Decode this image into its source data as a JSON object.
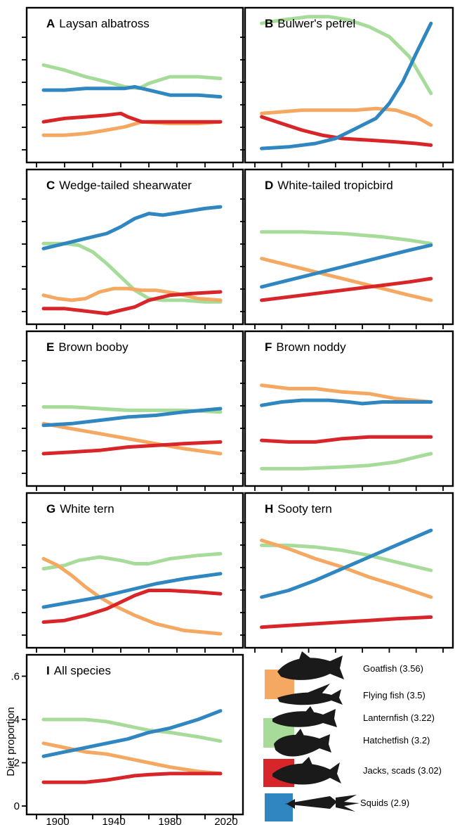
{
  "colors": {
    "goatfish_flying_fish": "#F5A862",
    "lanternfish_hatchetfish": "#A7DB9A",
    "jacks_scads": "#D8252A",
    "squids": "#2F86C0"
  },
  "x_axis": {
    "ticks": [
      "1900",
      "1940",
      "1980",
      "2020"
    ]
  },
  "y_axis": {
    "label": "Diet proportion",
    "ticks": [
      ".6",
      ".4",
      ".2",
      "0"
    ]
  },
  "legend": [
    {
      "label": "Goatfish (3.56)",
      "group": "goatfish_flying_fish",
      "icon": "goatfish-icon"
    },
    {
      "label": "Flying fish (3.5)",
      "group": "goatfish_flying_fish",
      "icon": "flying-fish-icon"
    },
    {
      "label": "Lanternfish (3.22)",
      "group": "lanternfish_hatchetfish",
      "icon": "lanternfish-icon"
    },
    {
      "label": "Hatchetfish (3.2)",
      "group": "lanternfish_hatchetfish",
      "icon": "hatchetfish-icon"
    },
    {
      "label": "Jacks, scads (3.02)",
      "group": "jacks_scads",
      "icon": "jack-icon"
    },
    {
      "label": "Squids (2.9)",
      "group": "squids",
      "icon": "squid-icon"
    }
  ],
  "chart_data": [
    {
      "panel": "A",
      "title": "Laysan albatross",
      "type": "line",
      "series": [
        {
          "color_key": "lanternfish_hatchetfish",
          "x": [
            1890,
            1905,
            1920,
            1935,
            1948,
            1958,
            1965,
            1980,
            2000,
            2016
          ],
          "y": [
            0.55,
            0.52,
            0.48,
            0.45,
            0.42,
            0.41,
            0.44,
            0.48,
            0.48,
            0.47
          ]
        },
        {
          "color_key": "squids",
          "x": [
            1890,
            1905,
            1920,
            1935,
            1948,
            1955,
            1965,
            1980,
            2000,
            2016
          ],
          "y": [
            0.4,
            0.4,
            0.41,
            0.41,
            0.41,
            0.42,
            0.4,
            0.37,
            0.37,
            0.36
          ]
        },
        {
          "color_key": "jacks_scads",
          "x": [
            1890,
            1905,
            1920,
            1935,
            1945,
            1950,
            1960,
            1980,
            2000,
            2016
          ],
          "y": [
            0.21,
            0.23,
            0.24,
            0.25,
            0.26,
            0.24,
            0.21,
            0.21,
            0.21,
            0.21
          ]
        },
        {
          "color_key": "goatfish_flying_fish",
          "x": [
            1890,
            1905,
            1920,
            1935,
            1948,
            1960,
            1980,
            2000,
            2016
          ],
          "y": [
            0.13,
            0.13,
            0.14,
            0.16,
            0.18,
            0.21,
            0.2,
            0.2,
            0.21
          ]
        }
      ]
    },
    {
      "panel": "B",
      "title": "Bulwer's petrel",
      "type": "line",
      "series": [
        {
          "color_key": "lanternfish_hatchetfish",
          "x": [
            1890,
            1905,
            1925,
            1940,
            1955,
            1970,
            1985,
            2000,
            2016
          ],
          "y": [
            0.8,
            0.82,
            0.84,
            0.84,
            0.82,
            0.78,
            0.72,
            0.6,
            0.38
          ]
        },
        {
          "color_key": "goatfish_flying_fish",
          "x": [
            1890,
            1905,
            1920,
            1940,
            1960,
            1975,
            1990,
            2005,
            2016
          ],
          "y": [
            0.26,
            0.27,
            0.28,
            0.28,
            0.28,
            0.29,
            0.28,
            0.24,
            0.19
          ]
        },
        {
          "color_key": "jacks_scads",
          "x": [
            1890,
            1905,
            1920,
            1935,
            1950,
            1970,
            1990,
            2005,
            2016
          ],
          "y": [
            0.24,
            0.2,
            0.16,
            0.13,
            0.11,
            0.1,
            0.09,
            0.08,
            0.07
          ]
        },
        {
          "color_key": "squids",
          "x": [
            1890,
            1910,
            1930,
            1945,
            1960,
            1975,
            1985,
            1995,
            2005,
            2016
          ],
          "y": [
            0.05,
            0.06,
            0.08,
            0.11,
            0.17,
            0.23,
            0.32,
            0.45,
            0.62,
            0.8
          ]
        }
      ]
    },
    {
      "panel": "C",
      "title": "Wedge-tailed shearwater",
      "type": "line",
      "series": [
        {
          "color_key": "squids",
          "x": [
            1890,
            1905,
            1920,
            1935,
            1945,
            1955,
            1965,
            1975,
            1990,
            2005,
            2016
          ],
          "y": [
            0.42,
            0.45,
            0.48,
            0.51,
            0.55,
            0.6,
            0.63,
            0.62,
            0.64,
            0.66,
            0.67
          ]
        },
        {
          "color_key": "lanternfish_hatchetfish",
          "x": [
            1890,
            1905,
            1915,
            1925,
            1935,
            1945,
            1955,
            1965,
            1975,
            1990,
            2005,
            2016
          ],
          "y": [
            0.45,
            0.45,
            0.44,
            0.4,
            0.33,
            0.25,
            0.17,
            0.12,
            0.11,
            0.11,
            0.1,
            0.1
          ]
        },
        {
          "color_key": "goatfish_flying_fish",
          "x": [
            1890,
            1900,
            1910,
            1920,
            1930,
            1940,
            1950,
            1960,
            1970,
            1985,
            2000,
            2016
          ],
          "y": [
            0.14,
            0.12,
            0.11,
            0.12,
            0.16,
            0.18,
            0.18,
            0.17,
            0.17,
            0.15,
            0.12,
            0.11
          ]
        },
        {
          "color_key": "jacks_scads",
          "x": [
            1890,
            1905,
            1915,
            1925,
            1935,
            1945,
            1955,
            1965,
            1980,
            1995,
            2016
          ],
          "y": [
            0.06,
            0.06,
            0.05,
            0.04,
            0.03,
            0.05,
            0.07,
            0.11,
            0.14,
            0.15,
            0.16
          ]
        }
      ]
    },
    {
      "panel": "D",
      "title": "White-tailed tropicbird",
      "type": "line",
      "series": [
        {
          "color_key": "lanternfish_hatchetfish",
          "x": [
            1890,
            1920,
            1950,
            1980,
            2000,
            2016
          ],
          "y": [
            0.52,
            0.52,
            0.51,
            0.49,
            0.47,
            0.45
          ]
        },
        {
          "color_key": "goatfish_flying_fish",
          "x": [
            1890,
            1920,
            1950,
            1980,
            2000,
            2016
          ],
          "y": [
            0.36,
            0.3,
            0.24,
            0.18,
            0.14,
            0.11
          ]
        },
        {
          "color_key": "squids",
          "x": [
            1890,
            1920,
            1950,
            1980,
            2000,
            2016
          ],
          "y": [
            0.19,
            0.25,
            0.31,
            0.37,
            0.41,
            0.44
          ]
        },
        {
          "color_key": "jacks_scads",
          "x": [
            1890,
            1920,
            1950,
            1980,
            2000,
            2016
          ],
          "y": [
            0.11,
            0.14,
            0.17,
            0.2,
            0.22,
            0.24
          ]
        }
      ]
    },
    {
      "panel": "E",
      "title": "Brown booby",
      "type": "line",
      "series": [
        {
          "color_key": "lanternfish_hatchetfish",
          "x": [
            1890,
            1910,
            1930,
            1950,
            1970,
            1990,
            2016
          ],
          "y": [
            0.44,
            0.44,
            0.43,
            0.42,
            0.42,
            0.42,
            0.41
          ]
        },
        {
          "color_key": "squids",
          "x": [
            1890,
            1910,
            1930,
            1950,
            1970,
            1990,
            2016
          ],
          "y": [
            0.33,
            0.34,
            0.36,
            0.38,
            0.39,
            0.41,
            0.43
          ]
        },
        {
          "color_key": "goatfish_flying_fish",
          "x": [
            1890,
            1910,
            1930,
            1950,
            1970,
            1990,
            2016
          ],
          "y": [
            0.34,
            0.31,
            0.28,
            0.25,
            0.22,
            0.19,
            0.16
          ]
        },
        {
          "color_key": "jacks_scads",
          "x": [
            1890,
            1910,
            1930,
            1950,
            1970,
            1990,
            2016
          ],
          "y": [
            0.16,
            0.17,
            0.18,
            0.2,
            0.21,
            0.22,
            0.23
          ]
        }
      ]
    },
    {
      "panel": "F",
      "title": "Brown noddy",
      "type": "line",
      "series": [
        {
          "color_key": "goatfish_flying_fish",
          "x": [
            1890,
            1910,
            1930,
            1950,
            1970,
            1990,
            2016
          ],
          "y": [
            0.57,
            0.55,
            0.55,
            0.53,
            0.52,
            0.49,
            0.47
          ]
        },
        {
          "color_key": "squids",
          "x": [
            1890,
            1905,
            1920,
            1940,
            1955,
            1965,
            1980,
            2000,
            2016
          ],
          "y": [
            0.45,
            0.47,
            0.48,
            0.48,
            0.47,
            0.46,
            0.47,
            0.47,
            0.47
          ]
        },
        {
          "color_key": "jacks_scads",
          "x": [
            1890,
            1910,
            1930,
            1950,
            1970,
            1990,
            2016
          ],
          "y": [
            0.24,
            0.23,
            0.23,
            0.25,
            0.26,
            0.26,
            0.26
          ]
        },
        {
          "color_key": "lanternfish_hatchetfish",
          "x": [
            1890,
            1920,
            1950,
            1970,
            1990,
            2005,
            2016
          ],
          "y": [
            0.07,
            0.07,
            0.08,
            0.09,
            0.11,
            0.14,
            0.16
          ]
        }
      ]
    },
    {
      "panel": "G",
      "title": "White tern",
      "type": "line",
      "series": [
        {
          "color_key": "lanternfish_hatchetfish",
          "x": [
            1890,
            1905,
            1915,
            1930,
            1945,
            1955,
            1965,
            1980,
            2000,
            2016
          ],
          "y": [
            0.44,
            0.46,
            0.49,
            0.51,
            0.49,
            0.47,
            0.47,
            0.5,
            0.52,
            0.53
          ]
        },
        {
          "color_key": "squids",
          "x": [
            1890,
            1910,
            1930,
            1950,
            1970,
            1990,
            2016
          ],
          "y": [
            0.21,
            0.24,
            0.27,
            0.31,
            0.35,
            0.38,
            0.41
          ]
        },
        {
          "color_key": "goatfish_flying_fish",
          "x": [
            1890,
            1900,
            1910,
            1920,
            1930,
            1940,
            1955,
            1970,
            1990,
            2016
          ],
          "y": [
            0.5,
            0.46,
            0.4,
            0.33,
            0.27,
            0.22,
            0.16,
            0.11,
            0.07,
            0.05
          ]
        },
        {
          "color_key": "jacks_scads",
          "x": [
            1890,
            1905,
            1920,
            1935,
            1945,
            1955,
            1965,
            1980,
            2000,
            2016
          ],
          "y": [
            0.12,
            0.13,
            0.16,
            0.2,
            0.24,
            0.28,
            0.31,
            0.31,
            0.3,
            0.29
          ]
        }
      ]
    },
    {
      "panel": "H",
      "title": "Sooty tern",
      "type": "line",
      "series": [
        {
          "color_key": "squids",
          "x": [
            1890,
            1910,
            1930,
            1950,
            1970,
            1990,
            2016
          ],
          "y": [
            0.27,
            0.31,
            0.37,
            0.44,
            0.51,
            0.58,
            0.67
          ]
        },
        {
          "color_key": "goatfish_flying_fish",
          "x": [
            1890,
            1910,
            1930,
            1950,
            1970,
            1990,
            2016
          ],
          "y": [
            0.61,
            0.56,
            0.5,
            0.45,
            0.39,
            0.34,
            0.27
          ]
        },
        {
          "color_key": "lanternfish_hatchetfish",
          "x": [
            1890,
            1910,
            1930,
            1950,
            1970,
            1990,
            2016
          ],
          "y": [
            0.58,
            0.58,
            0.57,
            0.55,
            0.52,
            0.48,
            0.43
          ]
        },
        {
          "color_key": "jacks_scads",
          "x": [
            1890,
            1910,
            1930,
            1950,
            1970,
            1990,
            2016
          ],
          "y": [
            0.09,
            0.1,
            0.11,
            0.12,
            0.13,
            0.14,
            0.15
          ]
        }
      ]
    },
    {
      "panel": "I",
      "title": "All species",
      "type": "line",
      "xlabel": "",
      "ylabel": "Diet proportion",
      "ylim": [
        0,
        0.66
      ],
      "xlim": [
        1885,
        2025
      ],
      "series": [
        {
          "color_key": "lanternfish_hatchetfish",
          "x": [
            1890,
            1905,
            1920,
            1935,
            1950,
            1965,
            1980,
            2000,
            2016
          ],
          "y": [
            0.4,
            0.4,
            0.4,
            0.39,
            0.37,
            0.35,
            0.34,
            0.32,
            0.3
          ]
        },
        {
          "color_key": "goatfish_flying_fish",
          "x": [
            1890,
            1905,
            1920,
            1935,
            1950,
            1965,
            1980,
            2000,
            2016
          ],
          "y": [
            0.29,
            0.27,
            0.25,
            0.24,
            0.22,
            0.2,
            0.18,
            0.16,
            0.15
          ]
        },
        {
          "color_key": "squids",
          "x": [
            1890,
            1905,
            1920,
            1935,
            1950,
            1965,
            1980,
            2000,
            2016
          ],
          "y": [
            0.23,
            0.25,
            0.27,
            0.29,
            0.31,
            0.34,
            0.36,
            0.4,
            0.44
          ]
        },
        {
          "color_key": "jacks_scads",
          "x": [
            1890,
            1905,
            1920,
            1935,
            1945,
            1955,
            1965,
            1980,
            2000,
            2016
          ],
          "y": [
            0.11,
            0.11,
            0.11,
            0.12,
            0.13,
            0.14,
            0.145,
            0.15,
            0.15,
            0.15
          ]
        }
      ]
    }
  ]
}
